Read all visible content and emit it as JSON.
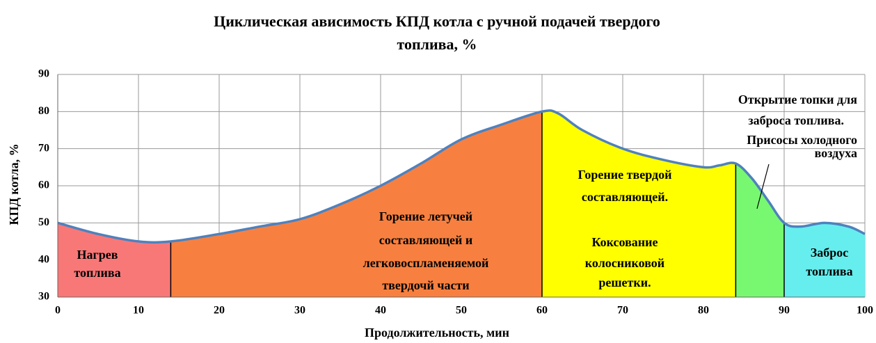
{
  "chart_data": {
    "type": "area",
    "title": [
      "Циклическая ависимость КПД котла с ручной подачей твердого",
      "топлива, %"
    ],
    "xlabel": "Продолжительность, мин",
    "ylabel": "КПД котла, %",
    "x": [
      0,
      5,
      10,
      14,
      20,
      25,
      30,
      35,
      40,
      45,
      50,
      55,
      60,
      62,
      65,
      70,
      75,
      80,
      82,
      84,
      86,
      88,
      90,
      92,
      95,
      98,
      100
    ],
    "values": [
      50,
      47,
      45,
      45,
      47,
      49,
      51,
      55,
      60,
      66,
      72.5,
      76.5,
      80,
      79.5,
      75,
      70,
      67,
      65,
      65.5,
      66,
      62,
      56,
      50,
      49,
      50,
      49,
      47
    ],
    "color": "#4f81bd",
    "xlim": [
      0,
      100
    ],
    "ylim": [
      30,
      90
    ],
    "xticks": [
      0,
      10,
      20,
      30,
      40,
      50,
      60,
      70,
      80,
      90,
      100
    ],
    "yticks": [
      30,
      40,
      50,
      60,
      70,
      80,
      90
    ],
    "grid": true,
    "regions": [
      {
        "start": 0,
        "end": 14,
        "color": "#f87878",
        "label": [
          "Нагрев",
          "топлива"
        ]
      },
      {
        "start": 14,
        "end": 60,
        "color": "#f78040",
        "label": [
          "Горение летучей",
          "составляющей и",
          "легковоспламеняемой",
          "твердочй части"
        ]
      },
      {
        "start": 60,
        "end": 84,
        "color": "#ffff00",
        "label": [
          "Горение твердой",
          "составляющей.",
          "Коксование",
          "колосниковой",
          "решетки."
        ]
      },
      {
        "start": 84,
        "end": 90,
        "color": "#78f870",
        "label": []
      },
      {
        "start": 90,
        "end": 100,
        "color": "#66eeee",
        "label": [
          "Заброс",
          "топлива"
        ]
      }
    ],
    "annotation": [
      "Открытие топки    для",
      "заброса топлива.",
      "Присосы холодного",
      "воздуха"
    ]
  }
}
